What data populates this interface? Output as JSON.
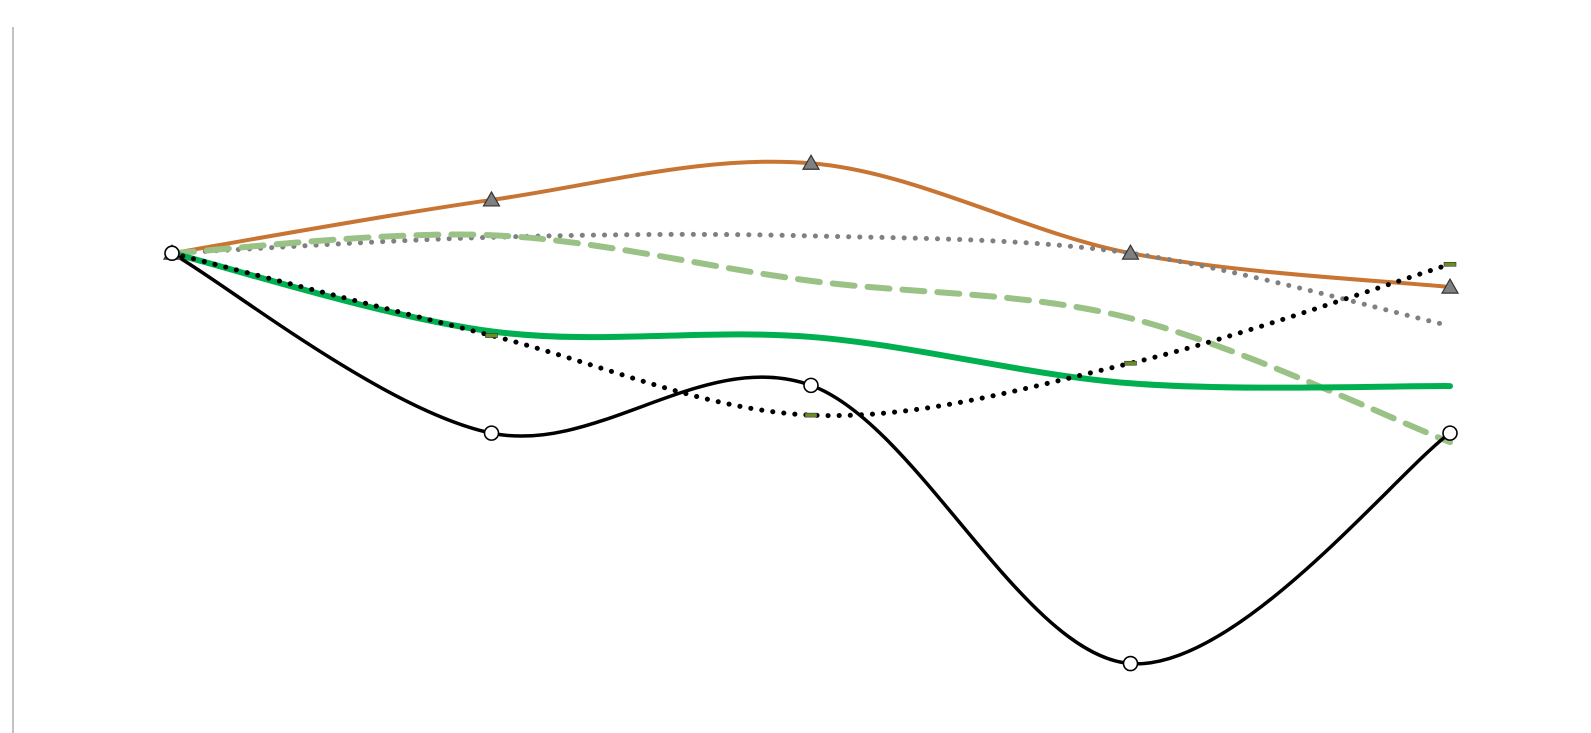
{
  "chart_data": {
    "type": "line",
    "title": "",
    "xlabel": "",
    "ylabel": "",
    "x": [
      0,
      1,
      2,
      3,
      4
    ],
    "ylim": [
      0,
      100
    ],
    "grid": false,
    "legend": "none",
    "axis_color": "#999999",
    "series": [
      {
        "color": "#c87533",
        "line_style": "solid",
        "marker": "triangle",
        "marker_fill": "#808080",
        "values": [
          66.3,
          74.0,
          79.3,
          66.3,
          61.4
        ]
      },
      {
        "color": "#808080",
        "line_style": "dotted",
        "marker": "none",
        "values": [
          66.3,
          68.6,
          68.8,
          66.3,
          55.8
        ]
      },
      {
        "color": "#9bc286",
        "line_style": "dashed",
        "marker": "none",
        "values": [
          66.3,
          68.9,
          62.3,
          56.9,
          39.0
        ]
      },
      {
        "color": "#00b050",
        "line_style": "solid",
        "marker": "none",
        "values": [
          66.3,
          55.0,
          54.2,
          47.5,
          47.1
        ]
      },
      {
        "color": "#000000",
        "line_style": "dotted",
        "marker": "dash",
        "marker_fill": "#6b8e23",
        "values": [
          66.3,
          54.4,
          42.9,
          50.4,
          64.7
        ]
      },
      {
        "color": "#000000",
        "line_style": "solid",
        "marker": "circle",
        "marker_fill": "#ffffff",
        "values": [
          66.3,
          40.3,
          47.2,
          7.0,
          40.3
        ]
      }
    ]
  }
}
